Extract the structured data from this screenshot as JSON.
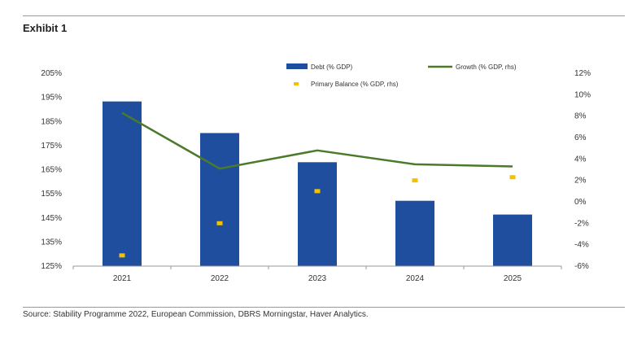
{
  "header": {
    "title": "Exhibit 1"
  },
  "footer": {
    "source": "Source: Stability Programme 2022, European Commission, DBRS Morningstar, Haver Analytics."
  },
  "colors": {
    "debt": "#1f4e9f",
    "growth": "#4a7a2a",
    "primary": "#f2c200",
    "axis": "#999999"
  },
  "chart_data": {
    "type": "bar",
    "categories": [
      "2021",
      "2022",
      "2023",
      "2024",
      "2025"
    ],
    "series": [
      {
        "name": "Debt (% GDP)",
        "type": "bar",
        "axis": "left",
        "values": [
          193.3,
          180.2,
          168.1,
          152.1,
          146.4
        ]
      },
      {
        "name": "Growth (% GDP, rhs)",
        "type": "line",
        "axis": "right",
        "values": [
          8.3,
          3.1,
          4.8,
          3.5,
          3.3
        ]
      },
      {
        "name": "Primary Balance (% GDP, rhs)",
        "type": "scatter",
        "axis": "right",
        "values": [
          -5.0,
          -2.0,
          1.0,
          2.0,
          2.3
        ]
      }
    ],
    "ylim": [
      125,
      205
    ],
    "yticks": [
      "205%",
      "195%",
      "185%",
      "175%",
      "165%",
      "155%",
      "145%",
      "135%",
      "125%"
    ],
    "y2lim": [
      -6,
      12
    ],
    "y2ticks": [
      "12%",
      "10%",
      "8%",
      "6%",
      "4%",
      "2%",
      "0%",
      "-2%",
      "-4%",
      "-6%"
    ],
    "legend_position": "top",
    "grid": false
  }
}
